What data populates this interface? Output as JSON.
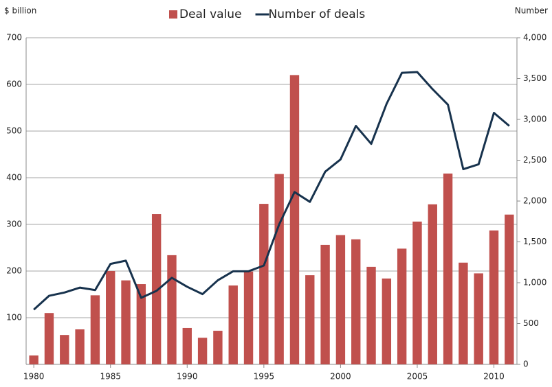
{
  "chart_data": {
    "type": "bar-line",
    "y_label": "$ billion",
    "y2_label": "Number",
    "x": [
      1980,
      1981,
      1982,
      1983,
      1984,
      1985,
      1986,
      1987,
      1988,
      1989,
      1990,
      1991,
      1992,
      1993,
      1994,
      1995,
      1996,
      1997,
      1998,
      1999,
      2000,
      2001,
      2002,
      2003,
      2004,
      2005,
      2006,
      2007,
      2008,
      2009,
      2010,
      2011
    ],
    "xlim": [
      1979.5,
      2011.5
    ],
    "xticks": [
      1980,
      1985,
      1990,
      1995,
      2000,
      2005,
      2010
    ],
    "ylim": [
      0,
      700
    ],
    "yticks": [
      100,
      200,
      300,
      400,
      500,
      600,
      700
    ],
    "y2lim": [
      0,
      4000
    ],
    "y2ticks": [
      0,
      500,
      {
        "value": 1000,
        "label": "1,000"
      },
      {
        "value": 1500,
        "label": "1,500"
      },
      {
        "value": 2000,
        "label": "2,000"
      },
      {
        "value": 2500,
        "label": "2,500"
      },
      {
        "value": 3000,
        "label": "3,000"
      },
      {
        "value": 3500,
        "label": "3,500"
      },
      {
        "value": 4000,
        "label": "4,000"
      }
    ],
    "grid": true,
    "legend": "top",
    "series": [
      {
        "name": "Deal value",
        "type": "bar",
        "color": "#c0504d",
        "values": [
          19,
          110,
          63,
          75,
          148,
          200,
          180,
          172,
          322,
          234,
          78,
          57,
          72,
          169,
          199,
          344,
          408,
          620,
          191,
          256,
          277,
          268,
          209,
          184,
          248,
          306,
          343,
          409,
          218,
          195,
          287,
          321
        ]
      },
      {
        "name": "Number of deals",
        "type": "line",
        "axis": "y2",
        "color": "#17324d",
        "values": [
          670,
          840,
          880,
          940,
          910,
          1230,
          1270,
          815,
          900,
          1060,
          950,
          860,
          1030,
          1140,
          1140,
          1210,
          1715,
          2110,
          1990,
          2360,
          2510,
          2920,
          2700,
          3190,
          3570,
          3580,
          3370,
          3180,
          2390,
          2450,
          3080,
          2920
        ]
      }
    ]
  }
}
